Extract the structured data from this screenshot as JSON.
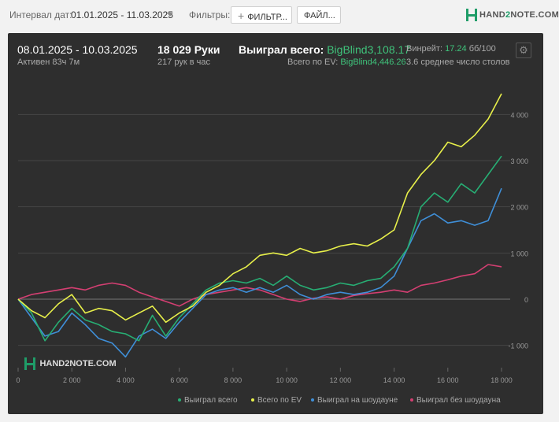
{
  "topbar": {
    "date_range_label": "Интервал дат:",
    "date_range_value": "01.01.2025 - 11.03.2025",
    "filters_label": "Фильтры:",
    "filter_button": "ФИЛЬТР...",
    "file_button": "ФАЙЛ...",
    "logo": "HAND2NOTE.COM"
  },
  "summary": {
    "period": "08.01.2025 - 10.03.2025",
    "active": "Активен 83ч 7м",
    "hands": "18 029 Руки",
    "hands_per_hour": "217 рук в час",
    "won_label": "Выиграл всего:",
    "won_value": "BigBlind3,108.17",
    "ev_label": "Всего по EV:",
    "ev_value": "BigBlind4,446.26",
    "winrate_label": "Винрейт:",
    "winrate_value": "17.24",
    "winrate_unit": "бб/100",
    "tables": "3.6 среднее число столов"
  },
  "colors": {
    "won_total": "#27ae74",
    "ev_total": "#e8f04a",
    "showdown": "#3f8fd8",
    "non_showdown": "#d43f72"
  },
  "chart_data": {
    "type": "line",
    "x_ticks": [
      "0",
      "2 000",
      "4 000",
      "6 000",
      "8 000",
      "10 000",
      "12 000",
      "14 000",
      "16 000",
      "18 000"
    ],
    "y_ticks": [
      "-1 000",
      "0",
      "1 000",
      "2 000",
      "3 000",
      "4 000"
    ],
    "xlim": [
      0,
      18029
    ],
    "ylim": [
      -1500,
      4500
    ],
    "grid": true,
    "legend_position": "bottom-right",
    "watermark": "HAND2NOTE.COM",
    "x": [
      0,
      500,
      1000,
      1500,
      2000,
      2500,
      3000,
      3500,
      4000,
      4500,
      5000,
      5500,
      6000,
      6500,
      7000,
      7500,
      8000,
      8500,
      9000,
      9500,
      10000,
      10500,
      11000,
      11500,
      12000,
      12500,
      13000,
      13500,
      14000,
      14500,
      15000,
      15500,
      16000,
      16500,
      17000,
      17500,
      18000
    ],
    "series": [
      {
        "name": "Выиграл всего",
        "values": [
          0,
          -300,
          -900,
          -500,
          -200,
          -450,
          -550,
          -700,
          -750,
          -900,
          -350,
          -800,
          -400,
          -100,
          200,
          350,
          400,
          350,
          450,
          300,
          500,
          300,
          200,
          250,
          350,
          300,
          400,
          450,
          700,
          1100,
          2000,
          2300,
          2100,
          2500,
          2300,
          2700,
          3100
        ]
      },
      {
        "name": "Всего по EV",
        "values": [
          0,
          -250,
          -400,
          -100,
          100,
          -300,
          -200,
          -250,
          -450,
          -300,
          -150,
          -500,
          -300,
          -150,
          150,
          300,
          550,
          700,
          950,
          1000,
          950,
          1100,
          1000,
          1050,
          1150,
          1200,
          1150,
          1300,
          1500,
          2300,
          2700,
          3000,
          3400,
          3300,
          3550,
          3900,
          4450
        ]
      },
      {
        "name": "Выиграл на шоудауне",
        "values": [
          0,
          -400,
          -800,
          -700,
          -300,
          -550,
          -850,
          -950,
          -1250,
          -800,
          -650,
          -850,
          -500,
          -200,
          100,
          200,
          250,
          150,
          250,
          150,
          300,
          100,
          0,
          100,
          150,
          100,
          150,
          250,
          500,
          1100,
          1700,
          1850,
          1650,
          1700,
          1600,
          1700,
          2400
        ]
      },
      {
        "name": "Выиграл без шоудауна",
        "values": [
          0,
          100,
          150,
          200,
          250,
          200,
          300,
          350,
          300,
          150,
          50,
          -50,
          -150,
          0,
          100,
          150,
          200,
          250,
          200,
          100,
          0,
          -50,
          20,
          50,
          0,
          80,
          120,
          150,
          200,
          150,
          300,
          350,
          420,
          500,
          550,
          750,
          700
        ]
      }
    ]
  }
}
